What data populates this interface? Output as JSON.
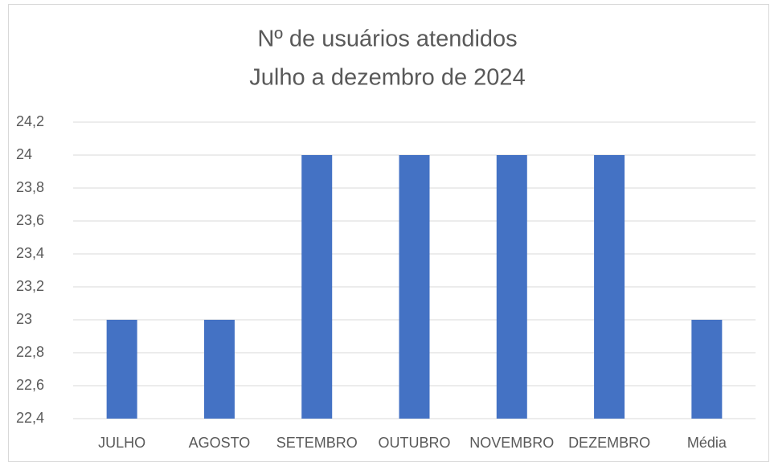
{
  "chart_data": {
    "type": "bar",
    "title": "Nº de usuários atendidos",
    "subtitle": "Julho a dezembro de 2024",
    "categories": [
      "JULHO",
      "AGOSTO",
      "SETEMBRO",
      "OUTUBRO",
      "NOVEMBRO",
      "DEZEMBRO",
      "Média"
    ],
    "values": [
      23,
      23,
      24,
      24,
      24,
      24,
      23
    ],
    "color": "#4472c4",
    "ylim": [
      22.4,
      24.2
    ],
    "yticks": [
      {
        "value": 22.4,
        "label": "22,4"
      },
      {
        "value": 22.6,
        "label": "22,6"
      },
      {
        "value": 22.8,
        "label": "22,8"
      },
      23,
      {
        "value": 23.2,
        "label": "23,2"
      },
      {
        "value": 23.4,
        "label": "23,4"
      },
      {
        "value": 23.6,
        "label": "23,6"
      },
      {
        "value": 23.8,
        "label": "23,8"
      },
      24,
      {
        "value": 24.2,
        "label": "24,2"
      }
    ],
    "grid": true
  }
}
